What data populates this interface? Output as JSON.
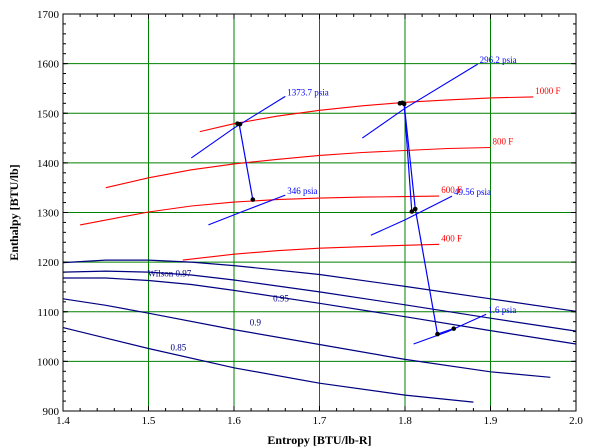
{
  "chart_data": {
    "type": "line",
    "xlabel": "Entropy [BTU/lb-R]",
    "ylabel": "Enthalpy [BTU/lb]",
    "xlim": [
      1.4,
      2.0
    ],
    "ylim": [
      900,
      1700
    ],
    "x_ticks": [
      "1.4",
      "1.5",
      "1.6",
      "1.7",
      "1.8",
      "1.9",
      "2.0"
    ],
    "y_ticks": [
      "900",
      "1000",
      "1100",
      "1200",
      "1300",
      "1400",
      "1500",
      "1600",
      "1700"
    ],
    "grid": true,
    "colors": {
      "grid": "#008000",
      "isotherm": "#ff0000",
      "isobar": "#0000ff",
      "moisture": "#000080",
      "cycle": "#0000ff",
      "point": "#000000"
    },
    "isotherms": [
      {
        "label": "1000 F",
        "x": [
          1.56,
          1.6,
          1.65,
          1.7,
          1.75,
          1.8,
          1.85,
          1.9,
          1.95
        ],
        "y": [
          1463,
          1479,
          1494,
          1506,
          1515,
          1522,
          1527,
          1531,
          1533
        ]
      },
      {
        "label": "800 F",
        "x": [
          1.45,
          1.5,
          1.55,
          1.6,
          1.65,
          1.7,
          1.75,
          1.8,
          1.85,
          1.9
        ],
        "y": [
          1350,
          1370,
          1386,
          1398,
          1407,
          1415,
          1421,
          1425,
          1429,
          1431
        ]
      },
      {
        "label": "600 F",
        "x": [
          1.42,
          1.5,
          1.55,
          1.6,
          1.65,
          1.7,
          1.75,
          1.8,
          1.84
        ],
        "y": [
          1275,
          1301,
          1313,
          1321,
          1326,
          1329,
          1331,
          1332,
          1333
        ]
      },
      {
        "label": "400 F",
        "x": [
          1.54,
          1.6,
          1.65,
          1.7,
          1.75,
          1.8,
          1.84
        ],
        "y": [
          1204,
          1216,
          1223,
          1228,
          1231,
          1234,
          1236
        ]
      }
    ],
    "isobars": [
      {
        "label": "1373.7 psia",
        "x": [
          1.55,
          1.6,
          1.66
        ],
        "y": [
          1410,
          1470,
          1534
        ]
      },
      {
        "label": "296.2 psia",
        "x": [
          1.75,
          1.8,
          1.885
        ],
        "y": [
          1450,
          1510,
          1599
        ]
      },
      {
        "label": "346 psia",
        "x": [
          1.57,
          1.61,
          1.66
        ],
        "y": [
          1275,
          1302,
          1335
        ]
      },
      {
        "label": "49.56 psia",
        "x": [
          1.76,
          1.8,
          1.855
        ],
        "y": [
          1254,
          1285,
          1333
        ]
      },
      {
        "label": "1.6 psia",
        "x": [
          1.81,
          1.85,
          1.895
        ],
        "y": [
          1035,
          1060,
          1095
        ]
      }
    ],
    "moisture_lines": [
      {
        "label": "",
        "x": [
          1.4,
          1.45,
          1.5,
          1.55,
          1.6,
          1.7,
          1.8,
          1.9,
          2.0
        ],
        "y": [
          1199,
          1204,
          1204,
          1200,
          1193,
          1175,
          1151,
          1126,
          1101
        ]
      },
      {
        "label": "Wilson 0.97",
        "x": [
          1.4,
          1.45,
          1.5,
          1.55,
          1.6,
          1.7,
          1.8,
          1.9,
          2.0
        ],
        "y": [
          1180,
          1182,
          1180,
          1174,
          1164,
          1140,
          1114,
          1087,
          1061
        ]
      },
      {
        "label": "0.95",
        "x": [
          1.4,
          1.45,
          1.5,
          1.55,
          1.6,
          1.7,
          1.8,
          1.9,
          2.0
        ],
        "y": [
          1168,
          1168,
          1163,
          1155,
          1143,
          1117,
          1090,
          1062,
          1035
        ]
      },
      {
        "label": "0.9",
        "x": [
          1.4,
          1.45,
          1.5,
          1.6,
          1.7,
          1.8,
          1.9,
          1.97
        ],
        "y": [
          1126,
          1113,
          1097,
          1064,
          1034,
          1004,
          979,
          968
        ]
      },
      {
        "label": "0.85",
        "x": [
          1.4,
          1.45,
          1.5,
          1.6,
          1.7,
          1.8,
          1.88
        ],
        "y": [
          1068,
          1047,
          1026,
          987,
          956,
          932,
          918
        ]
      }
    ],
    "cycle_path": {
      "x": [
        1.606,
        1.622,
        1.606
      ],
      "y": [
        1479,
        1326,
        1479
      ]
    },
    "cycle_path_2": {
      "x": [
        1.795,
        1.799,
        1.812,
        1.838,
        1.857
      ],
      "y": [
        1520,
        1520,
        1307,
        1055,
        1066
      ]
    },
    "cycle_path_3": {
      "x": [
        1.799,
        1.808
      ],
      "y": [
        1520,
        1302
      ]
    },
    "points": {
      "x": [
        1.604,
        1.607,
        1.622,
        1.794,
        1.797,
        1.799,
        1.808,
        1.812,
        1.838,
        1.857
      ],
      "y": [
        1479,
        1478,
        1326,
        1520,
        1521,
        1519,
        1302,
        1307,
        1055,
        1066
      ]
    }
  }
}
